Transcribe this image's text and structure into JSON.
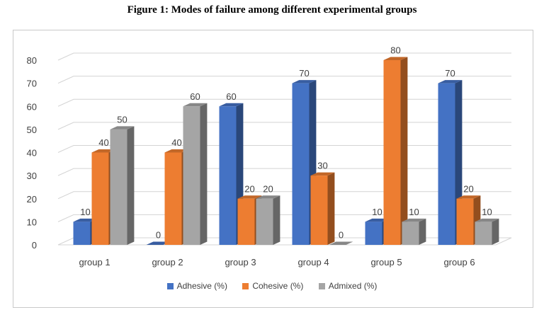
{
  "figure_title": "Figure 1: Modes of failure among different experimental groups",
  "chart_data": {
    "type": "bar",
    "categories": [
      "group 1",
      "group 2",
      "group 3",
      "group 4",
      "group 5",
      "group 6"
    ],
    "series": [
      {
        "name": "Adhesive (%)",
        "values": [
          10,
          0,
          60,
          70,
          10,
          70
        ],
        "color": "#4472c4"
      },
      {
        "name": "Cohesive (%)",
        "values": [
          40,
          40,
          20,
          30,
          80,
          20
        ],
        "color": "#ed7d31"
      },
      {
        "name": "Admixed (%)",
        "values": [
          50,
          60,
          20,
          0,
          10,
          10
        ],
        "color": "#a5a5a5"
      }
    ],
    "yticks": [
      0,
      10,
      20,
      30,
      40,
      50,
      60,
      70,
      80
    ],
    "ylim": [
      0,
      80
    ],
    "grid": true,
    "style": "3d",
    "legend_position": "bottom"
  }
}
